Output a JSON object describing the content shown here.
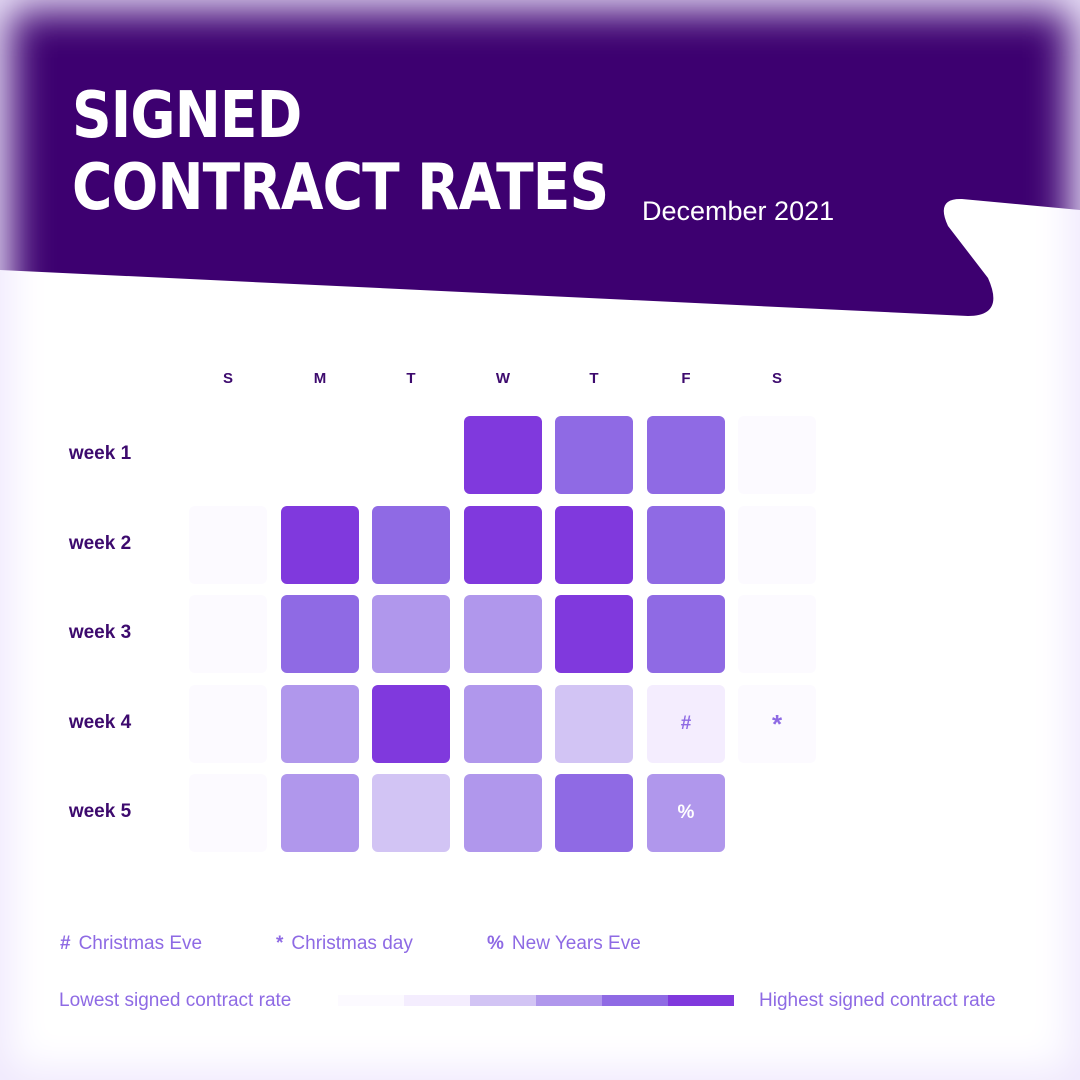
{
  "header": {
    "title_line1": "SIGNED",
    "title_line2": "CONTRACT RATES",
    "subtitle": "December 2021",
    "bg_color": "#3d0070"
  },
  "days": [
    "S",
    "M",
    "T",
    "W",
    "T",
    "F",
    "S"
  ],
  "weeks": [
    "week 1",
    "week 2",
    "week 3",
    "week 4",
    "week 5"
  ],
  "level_colors": [
    "#fcfaff",
    "#f4edfe",
    "#d2c4f4",
    "#b097ec",
    "#8f6ae4",
    "#8039dd"
  ],
  "legend": {
    "keys": [
      {
        "symbol": "#",
        "label": "Christmas Eve"
      },
      {
        "symbol": "*",
        "label": "Christmas day"
      },
      {
        "symbol": "%",
        "label": "New Years Eve"
      }
    ],
    "low_label": "Lowest signed contract rate",
    "high_label": "Highest signed contract rate"
  },
  "chart_data": {
    "type": "heatmap",
    "title": "SIGNED CONTRACT RATES",
    "subtitle": "December 2021",
    "x_labels": [
      "S",
      "M",
      "T",
      "W",
      "T",
      "F",
      "S"
    ],
    "y_labels": [
      "week 1",
      "week 2",
      "week 3",
      "week 4",
      "week 5"
    ],
    "scale": {
      "min_label": "Lowest signed contract rate",
      "max_label": "Highest signed contract rate",
      "levels": 6
    },
    "values": [
      [
        null,
        null,
        null,
        5,
        4,
        4,
        0
      ],
      [
        0,
        5,
        4,
        5,
        5,
        4,
        0
      ],
      [
        0,
        4,
        3,
        3,
        5,
        4,
        0
      ],
      [
        0,
        3,
        5,
        3,
        2,
        1,
        0
      ],
      [
        0,
        3,
        2,
        3,
        4,
        3,
        null
      ]
    ],
    "annotations": [
      {
        "week": 4,
        "day": "F",
        "symbol": "#",
        "meaning": "Christmas Eve"
      },
      {
        "week": 4,
        "day": "S",
        "symbol": "*",
        "meaning": "Christmas day"
      },
      {
        "week": 5,
        "day": "F",
        "symbol": "%",
        "meaning": "New Years Eve"
      }
    ]
  }
}
